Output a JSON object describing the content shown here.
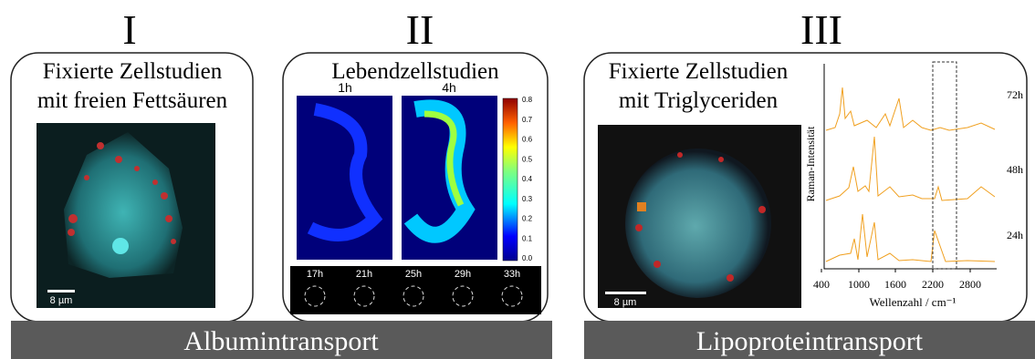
{
  "panels": [
    {
      "numeral": "I",
      "title": [
        "Fixierte Zellstudien",
        "mit freien Fettsäuren"
      ],
      "scale_bar": "8 µm"
    },
    {
      "numeral": "II",
      "title": [
        "Lebendzellstudien"
      ],
      "image_labels": [
        "1h",
        "4h"
      ],
      "colorbar_ticks": [
        "0.8",
        "0.7",
        "0.6",
        "0.5",
        "0.4",
        "0.3",
        "0.2",
        "0.1",
        "0.0"
      ],
      "time_series": [
        "17h",
        "21h",
        "25h",
        "29h",
        "33h"
      ]
    },
    {
      "numeral": "III",
      "title": [
        "Fixierte Zellstudien",
        "mit Triglyceriden"
      ],
      "scale_bar": "8 µm",
      "plot": {
        "y_label": "Raman-Intensität",
        "x_label": "Wellenzahl / cm⁻¹",
        "x_ticks": [
          "400",
          "1000",
          "1600",
          "2200",
          "2800"
        ],
        "spectra": [
          "72h",
          "48h",
          "24h"
        ]
      }
    }
  ],
  "banners": [
    "Albumintransport",
    "Lipoproteintransport"
  ]
}
